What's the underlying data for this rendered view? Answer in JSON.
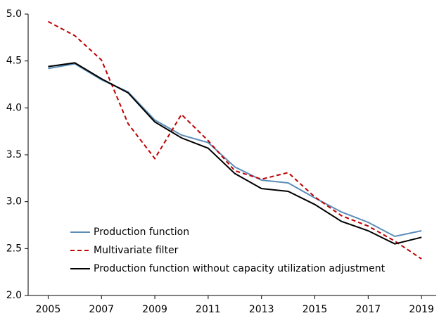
{
  "chart_data": {
    "type": "line",
    "x": [
      2005,
      2006,
      2007,
      2008,
      2009,
      2010,
      2011,
      2012,
      2013,
      2014,
      2015,
      2016,
      2017,
      2018,
      2019
    ],
    "series": [
      {
        "name": "Production function",
        "color": "#5b8db8",
        "dashed": false,
        "values": [
          4.42,
          4.47,
          4.3,
          4.17,
          3.87,
          3.71,
          3.63,
          3.37,
          3.23,
          3.2,
          3.04,
          2.89,
          2.78,
          2.63,
          2.69
        ]
      },
      {
        "name": "Multivariate filter",
        "color": "#c00000",
        "dashed": true,
        "values": [
          4.92,
          4.77,
          4.51,
          3.83,
          3.46,
          3.93,
          3.65,
          3.33,
          3.24,
          3.31,
          3.05,
          2.85,
          2.74,
          2.58,
          2.39
        ]
      },
      {
        "name": "Production function without capacity utilization adjustment",
        "color": "#000000",
        "dashed": false,
        "values": [
          4.44,
          4.48,
          4.31,
          4.16,
          3.85,
          3.68,
          3.57,
          3.3,
          3.14,
          3.11,
          2.97,
          2.79,
          2.69,
          2.55,
          2.62
        ]
      }
    ],
    "xlim": [
      2004.25,
      2019.55
    ],
    "xticks": [
      2005,
      2007,
      2009,
      2011,
      2013,
      2015,
      2017,
      2019
    ],
    "ylim": [
      2.0,
      5.0
    ],
    "yticks": [
      {
        "value": 2.0,
        "label": "2.0"
      },
      2.5,
      {
        "value": 3.0,
        "label": "3.0"
      },
      3.5,
      {
        "value": 4.0,
        "label": "4.0"
      },
      4.5,
      {
        "value": 5.0,
        "label": "5.0"
      }
    ],
    "grid": false,
    "legend": "lower left"
  }
}
